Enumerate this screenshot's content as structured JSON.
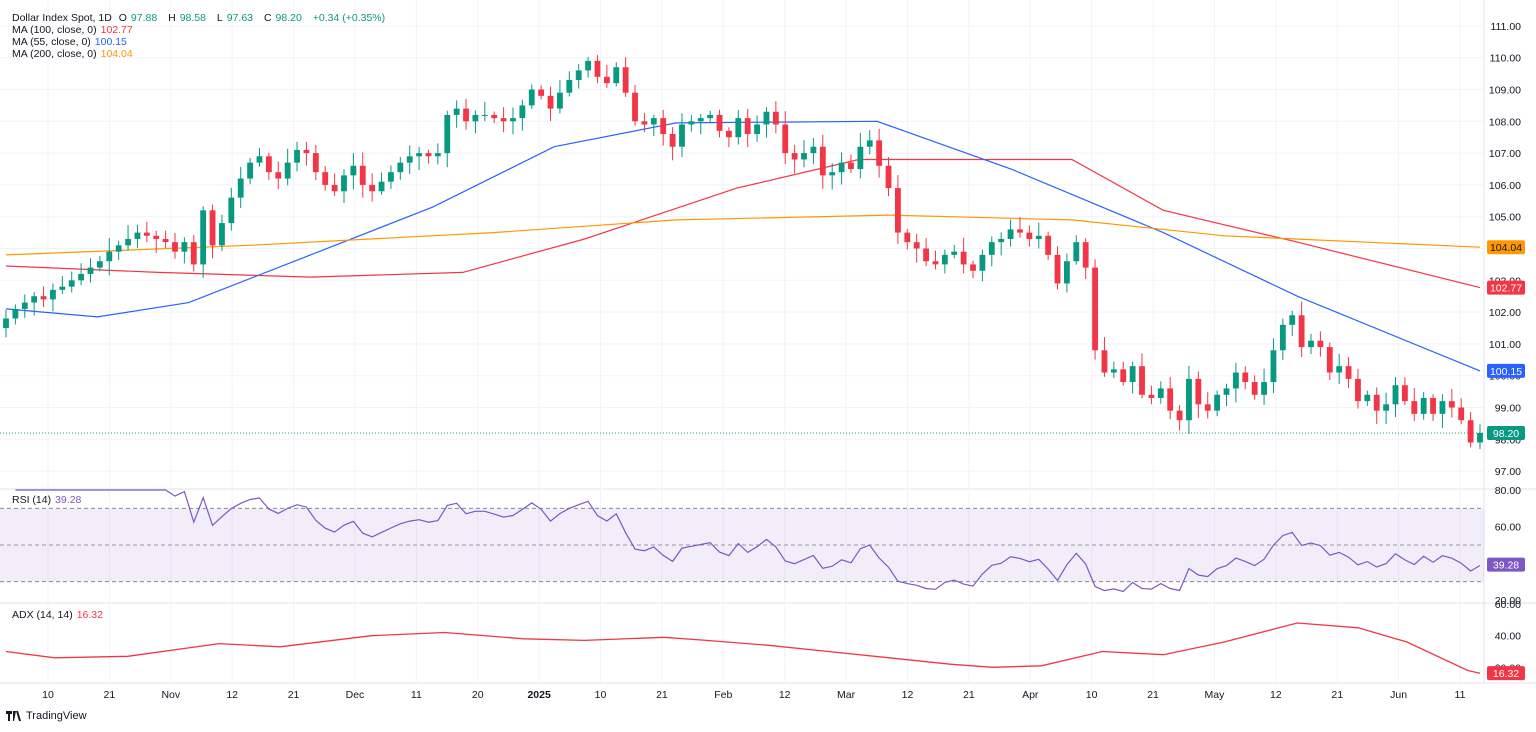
{
  "chart_data": [
    {
      "type": "candlestick",
      "title": "Dollar Index Spot, 1D",
      "ohlc_label": {
        "o_label": "O",
        "o": "97.88",
        "h_label": "H",
        "h": "98.58",
        "l_label": "L",
        "l": "97.63",
        "c_label": "C",
        "c": "98.20",
        "change": "+0.34 (+0.35%)"
      },
      "ylim": [
        96.5,
        111.5
      ],
      "y_ticks": [
        "111.00",
        "110.00",
        "109.00",
        "108.00",
        "107.00",
        "106.00",
        "105.00",
        "104.00",
        "103.00",
        "102.00",
        "101.00",
        "100.00",
        "99.00",
        "98.00",
        "97.00"
      ],
      "last_price": "98.20",
      "x_ticks": [
        "10",
        "21",
        "Nov",
        "12",
        "21",
        "Dec",
        "11",
        "20",
        "2025",
        "10",
        "21",
        "Feb",
        "12",
        "Mar",
        "12",
        "21",
        "Apr",
        "10",
        "21",
        "May",
        "12",
        "21",
        "Jun",
        "11"
      ],
      "closes": [
        101.8,
        102.1,
        102.3,
        102.5,
        102.4,
        102.7,
        102.8,
        103.0,
        103.2,
        103.4,
        103.6,
        103.9,
        104.1,
        104.3,
        104.5,
        104.4,
        104.3,
        104.2,
        103.9,
        104.2,
        103.5,
        105.2,
        104.1,
        104.8,
        105.6,
        106.2,
        106.7,
        106.9,
        106.4,
        106.2,
        106.7,
        107.1,
        107.0,
        106.4,
        106.0,
        105.8,
        106.3,
        106.6,
        106.0,
        105.8,
        106.1,
        106.4,
        106.7,
        106.9,
        107.0,
        106.9,
        107.0,
        108.2,
        108.4,
        108.0,
        108.2,
        108.2,
        108.1,
        108.0,
        108.1,
        108.5,
        109.0,
        108.8,
        108.4,
        108.9,
        109.3,
        109.6,
        109.9,
        109.4,
        109.2,
        109.7,
        108.9,
        108.0,
        107.9,
        108.1,
        107.6,
        107.2,
        107.9,
        108.0,
        108.1,
        108.2,
        107.7,
        107.5,
        108.1,
        107.6,
        107.9,
        108.3,
        107.9,
        107.0,
        106.8,
        107.0,
        107.2,
        106.3,
        106.4,
        106.7,
        106.5,
        107.2,
        107.4,
        106.6,
        105.9,
        104.5,
        104.2,
        104.0,
        103.6,
        103.5,
        103.8,
        103.9,
        103.5,
        103.3,
        103.8,
        104.2,
        104.3,
        104.6,
        104.5,
        104.3,
        104.4,
        103.8,
        102.9,
        103.6,
        104.2,
        103.4,
        100.8,
        100.1,
        100.2,
        99.8,
        100.3,
        99.4,
        99.3,
        99.6,
        98.9,
        98.6,
        99.9,
        99.1,
        98.9,
        99.4,
        99.6,
        100.1,
        99.8,
        99.4,
        99.8,
        100.8,
        101.6,
        101.9,
        100.9,
        101.1,
        100.9,
        100.1,
        100.3,
        99.9,
        99.2,
        99.4,
        98.9,
        99.1,
        99.7,
        99.2,
        98.8,
        99.3,
        98.8,
        99.2,
        99.0,
        98.6,
        97.9,
        98.2
      ],
      "series": [
        {
          "name": "MA (100, close, 0)",
          "value_label": "102.77",
          "color": "#f23645",
          "points": [
            [
              0,
              103.45
            ],
            [
              25,
              103.25
            ],
            [
              50,
              103.1
            ],
            [
              75,
              103.25
            ],
            [
              95,
              104.3
            ],
            [
              120,
              105.9
            ],
            [
              140,
              106.8
            ],
            [
              175,
              106.8
            ],
            [
              190,
              105.2
            ],
            [
              212,
              104.2
            ],
            [
              242,
              102.77
            ]
          ]
        },
        {
          "name": "MA (55, close, 0)",
          "value_label": "100.15",
          "color": "#2962ff",
          "points": [
            [
              0,
              102.1
            ],
            [
              15,
              101.85
            ],
            [
              30,
              102.3
            ],
            [
              50,
              103.8
            ],
            [
              70,
              105.3
            ],
            [
              90,
              107.2
            ],
            [
              110,
              107.95
            ],
            [
              143,
              108.0
            ],
            [
              165,
              106.5
            ],
            [
              190,
              104.5
            ],
            [
              212,
              102.5
            ],
            [
              242,
              100.15
            ]
          ]
        },
        {
          "name": "MA (200, close, 0)",
          "value_label": "104.04",
          "color": "#ff9800",
          "points": [
            [
              0,
              103.8
            ],
            [
              40,
              104.1
            ],
            [
              80,
              104.5
            ],
            [
              110,
              104.9
            ],
            [
              145,
              105.05
            ],
            [
              175,
              104.9
            ],
            [
              200,
              104.4
            ],
            [
              242,
              104.04
            ]
          ]
        }
      ]
    },
    {
      "type": "line",
      "name": "RSI (14)",
      "value_label": "39.28",
      "color": "#7e57c2",
      "ylim": [
        20,
        80
      ],
      "y_ticks": [
        "80.00",
        "60.00",
        "40.00",
        "20.00"
      ],
      "band": [
        30,
        70
      ],
      "midline": 50
    },
    {
      "type": "line",
      "name": "ADX (14, 14)",
      "value_label": "16.32",
      "color": "#f23645",
      "ylim": [
        12,
        60
      ],
      "y_ticks": [
        "60.00",
        "40.00",
        "20.00"
      ],
      "points": [
        [
          0,
          30
        ],
        [
          8,
          26
        ],
        [
          20,
          27
        ],
        [
          35,
          35
        ],
        [
          45,
          33
        ],
        [
          60,
          40
        ],
        [
          72,
          42
        ],
        [
          85,
          38
        ],
        [
          95,
          37
        ],
        [
          108,
          39
        ],
        [
          115,
          37
        ],
        [
          125,
          34
        ],
        [
          135,
          30
        ],
        [
          145,
          26
        ],
        [
          155,
          22
        ],
        [
          162,
          20
        ],
        [
          170,
          21
        ],
        [
          180,
          30
        ],
        [
          190,
          28
        ],
        [
          200,
          36
        ],
        [
          212,
          48
        ],
        [
          222,
          45
        ],
        [
          230,
          36
        ],
        [
          240,
          18
        ],
        [
          242,
          16.32
        ]
      ]
    }
  ],
  "branding": "TradingView"
}
